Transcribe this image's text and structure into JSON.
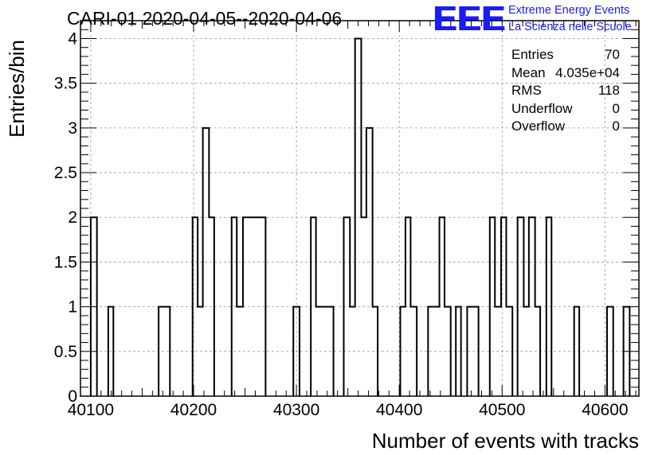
{
  "title": "CARI-01 2020-04-05--2020-04-06",
  "logo": {
    "mark": "EEE",
    "line1": "Extreme Energy Events",
    "line2": "La Scienza nelle Scuole",
    "color": "#1a1aff"
  },
  "stats": [
    {
      "label": "Entries",
      "value": "70"
    },
    {
      "label": "Mean",
      "value": "4.035e+04"
    },
    {
      "label": "RMS",
      "value": "118"
    },
    {
      "label": "Underflow",
      "value": "0"
    },
    {
      "label": "Overflow",
      "value": "0"
    }
  ],
  "chart_data": {
    "type": "histogram",
    "xlabel": "Number of events with tracks",
    "ylabel": "Entries/bin",
    "xlim": [
      40090,
      40633
    ],
    "ylim": [
      0,
      4.2
    ],
    "xticks": [
      "40100",
      "40200",
      "40300",
      "40400",
      "40500",
      "40600"
    ],
    "yticks": [
      "0",
      "0.5",
      "1",
      "1.5",
      "2",
      "2.5",
      "3",
      "3.5",
      "4"
    ],
    "grid": true,
    "bins": [
      {
        "x": [
          40100,
          40106
        ],
        "y": 2
      },
      {
        "x": [
          40117,
          40122
        ],
        "y": 1
      },
      {
        "x": [
          40166,
          40177
        ],
        "y": 1
      },
      {
        "x": [
          40199,
          40204
        ],
        "y": 2
      },
      {
        "x": [
          40204,
          40209
        ],
        "y": 1
      },
      {
        "x": [
          40209,
          40215
        ],
        "y": 3
      },
      {
        "x": [
          40215,
          40220
        ],
        "y": 2
      },
      {
        "x": [
          40237,
          40242
        ],
        "y": 2
      },
      {
        "x": [
          40242,
          40248
        ],
        "y": 1
      },
      {
        "x": [
          40248,
          40270
        ],
        "y": 2
      },
      {
        "x": [
          40297,
          40303
        ],
        "y": 1
      },
      {
        "x": [
          40314,
          40319
        ],
        "y": 2
      },
      {
        "x": [
          40319,
          40336
        ],
        "y": 1
      },
      {
        "x": [
          40346,
          40352
        ],
        "y": 2
      },
      {
        "x": [
          40352,
          40357
        ],
        "y": 1
      },
      {
        "x": [
          40357,
          40363
        ],
        "y": 4
      },
      {
        "x": [
          40363,
          40368
        ],
        "y": 2
      },
      {
        "x": [
          40368,
          40374
        ],
        "y": 3
      },
      {
        "x": [
          40374,
          40379
        ],
        "y": 1
      },
      {
        "x": [
          40401,
          40406
        ],
        "y": 1
      },
      {
        "x": [
          40406,
          40411
        ],
        "y": 2
      },
      {
        "x": [
          40411,
          40417
        ],
        "y": 1
      },
      {
        "x": [
          40428,
          40439
        ],
        "y": 1
      },
      {
        "x": [
          40439,
          40444
        ],
        "y": 2
      },
      {
        "x": [
          40444,
          40450
        ],
        "y": 1
      },
      {
        "x": [
          40455,
          40460
        ],
        "y": 1
      },
      {
        "x": [
          40466,
          40477
        ],
        "y": 1
      },
      {
        "x": [
          40488,
          40493
        ],
        "y": 2
      },
      {
        "x": [
          40493,
          40499
        ],
        "y": 1
      },
      {
        "x": [
          40499,
          40504
        ],
        "y": 2
      },
      {
        "x": [
          40504,
          40510
        ],
        "y": 1
      },
      {
        "x": [
          40515,
          40521
        ],
        "y": 2
      },
      {
        "x": [
          40521,
          40526
        ],
        "y": 1
      },
      {
        "x": [
          40526,
          40532
        ],
        "y": 2
      },
      {
        "x": [
          40532,
          40537
        ],
        "y": 1
      },
      {
        "x": [
          40543,
          40548
        ],
        "y": 2
      },
      {
        "x": [
          40570,
          40575
        ],
        "y": 1
      },
      {
        "x": [
          40602,
          40608
        ],
        "y": 1
      },
      {
        "x": [
          40618,
          40624
        ],
        "y": 1
      }
    ]
  }
}
